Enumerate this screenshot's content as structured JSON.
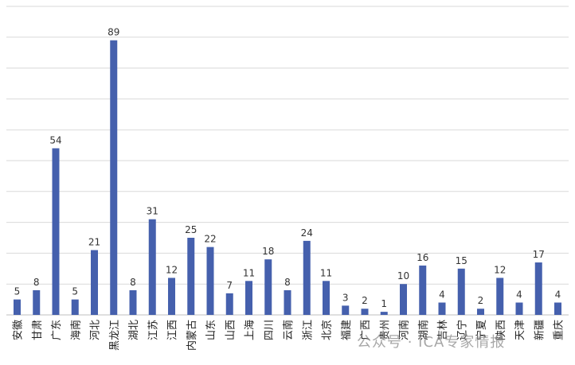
{
  "chart_data": {
    "type": "bar",
    "categories": [
      "安徽",
      "甘肃",
      "广东",
      "海南",
      "河北",
      "黑龙江",
      "湖北",
      "江苏",
      "江西",
      "内蒙古",
      "山东",
      "山西",
      "上海",
      "四川",
      "云南",
      "浙江",
      "北京",
      "福建",
      "广西",
      "贵州",
      "河南",
      "湖南",
      "吉林",
      "辽宁",
      "宁夏",
      "陕西",
      "天津",
      "新疆",
      "重庆"
    ],
    "values": [
      5,
      8,
      54,
      5,
      21,
      89,
      8,
      31,
      12,
      25,
      22,
      7,
      11,
      18,
      8,
      24,
      11,
      3,
      2,
      1,
      10,
      16,
      4,
      15,
      2,
      12,
      4,
      17,
      4
    ],
    "ylim": [
      0,
      100
    ],
    "grid": true,
    "legend": "none",
    "bar_color": "#4560ad",
    "grid_color": "#d9d9d9",
    "axis_color": "#bfbfbf"
  },
  "watermark": "公众号 · ICA专家情报"
}
